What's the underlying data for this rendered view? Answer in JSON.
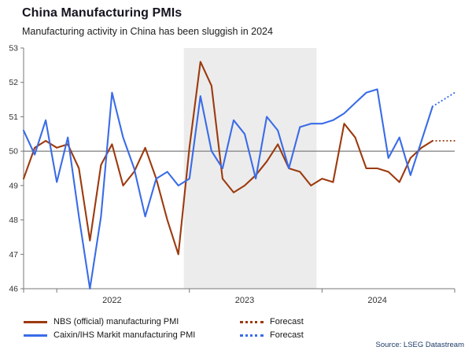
{
  "footer": {
    "source": "Source: LSEG Datastream"
  },
  "chart_data": {
    "type": "line",
    "title": "China Manufacturing PMIs",
    "subtitle": "Manufacturing activity in China has been sluggish in 2024",
    "ylim": [
      46,
      53
    ],
    "yticks": [
      46,
      47,
      48,
      49,
      50,
      51,
      52,
      53
    ],
    "reference_line": 50,
    "grid": false,
    "legend_position": "bottom",
    "shaded_region": {
      "from": "2023-01",
      "to": "2023-12"
    },
    "colors": {
      "nbs": "#9c3a0f",
      "caixin": "#3a6ce8",
      "shade": "#ececec",
      "reference_line": "#8a8a8a",
      "axis": "#777777",
      "tick_text": "#333333"
    },
    "x_months": [
      "2021-10",
      "2021-11",
      "2021-12",
      "2022-01",
      "2022-02",
      "2022-03",
      "2022-04",
      "2022-05",
      "2022-06",
      "2022-07",
      "2022-08",
      "2022-09",
      "2022-10",
      "2022-11",
      "2022-12",
      "2023-01",
      "2023-02",
      "2023-03",
      "2023-04",
      "2023-05",
      "2023-06",
      "2023-07",
      "2023-08",
      "2023-09",
      "2023-10",
      "2023-11",
      "2023-12",
      "2024-01",
      "2024-02",
      "2024-03",
      "2024-04",
      "2024-05",
      "2024-06",
      "2024-07",
      "2024-08",
      "2024-09",
      "2024-10",
      "2024-11",
      "2024-12",
      "2025-01"
    ],
    "xticks": [
      {
        "label": "2022",
        "year_start": "2022-01",
        "label_month": "2022-06"
      },
      {
        "label": "2023",
        "year_start": "2023-01",
        "label_month": "2023-06"
      },
      {
        "label": "2024",
        "year_start": "2024-01",
        "label_month": "2024-06"
      }
    ],
    "series": [
      {
        "id": "nbs",
        "name": "NBS (official) manufacturing PMI",
        "color": "#9c3a0f",
        "style": "solid",
        "values": [
          49.2,
          50.1,
          50.3,
          50.1,
          50.2,
          49.5,
          47.4,
          49.6,
          50.2,
          49.0,
          49.4,
          50.1,
          49.2,
          48.0,
          47.0,
          50.1,
          52.6,
          51.9,
          49.2,
          48.8,
          49.0,
          49.3,
          49.7,
          50.2,
          49.5,
          49.4,
          49.0,
          49.2,
          49.1,
          50.8,
          50.4,
          49.5,
          49.5,
          49.4,
          49.1,
          49.8,
          50.1,
          50.3,
          null,
          null
        ]
      },
      {
        "id": "caixin",
        "name": "Caixin/IHS Markit manufacturing PMI",
        "color": "#3a6ce8",
        "style": "solid",
        "values": [
          50.6,
          49.9,
          50.9,
          49.1,
          50.4,
          48.1,
          46.0,
          48.1,
          51.7,
          50.4,
          49.5,
          48.1,
          49.2,
          49.4,
          49.0,
          49.2,
          51.6,
          50.0,
          49.5,
          50.9,
          50.5,
          49.2,
          51.0,
          50.6,
          49.5,
          50.7,
          50.8,
          50.8,
          50.9,
          51.1,
          51.4,
          51.7,
          51.8,
          49.8,
          50.4,
          49.3,
          50.3,
          51.3,
          null,
          null
        ]
      },
      {
        "id": "nbs-forecast",
        "name": "Forecast",
        "color": "#9c3a0f",
        "style": "dotted",
        "values": [
          null,
          null,
          null,
          null,
          null,
          null,
          null,
          null,
          null,
          null,
          null,
          null,
          null,
          null,
          null,
          null,
          null,
          null,
          null,
          null,
          null,
          null,
          null,
          null,
          null,
          null,
          null,
          null,
          null,
          null,
          null,
          null,
          null,
          null,
          null,
          null,
          null,
          50.3,
          50.3,
          50.3
        ]
      },
      {
        "id": "caixin-forecast",
        "name": "Forecast",
        "color": "#3a6ce8",
        "style": "dotted",
        "values": [
          null,
          null,
          null,
          null,
          null,
          null,
          null,
          null,
          null,
          null,
          null,
          null,
          null,
          null,
          null,
          null,
          null,
          null,
          null,
          null,
          null,
          null,
          null,
          null,
          null,
          null,
          null,
          null,
          null,
          null,
          null,
          null,
          null,
          null,
          null,
          null,
          null,
          51.3,
          51.5,
          51.7
        ]
      }
    ]
  }
}
